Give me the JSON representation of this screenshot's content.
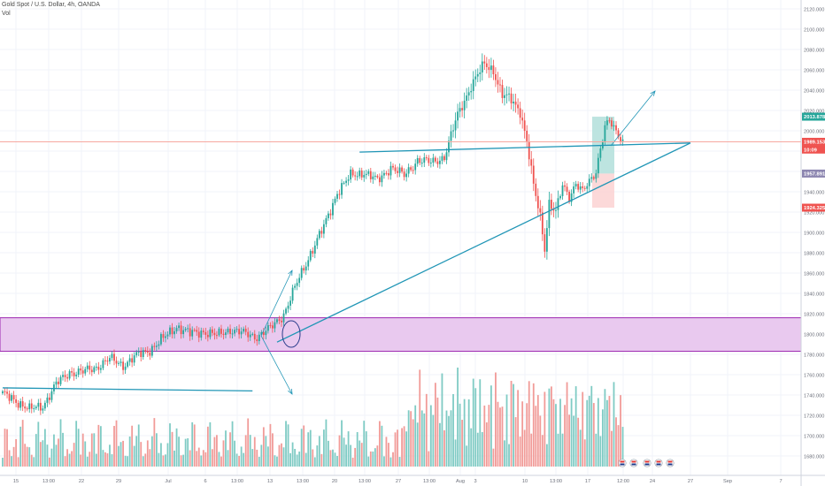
{
  "header": {
    "symbol": "Gold Spot / U.S. Dollar, 4h, OANDA",
    "indicator": "Vol"
  },
  "colors": {
    "up": "#26a69a",
    "down": "#ef5350",
    "vol_up": "#7fcbc4",
    "vol_down": "#f19b98",
    "zone_fill": "#e9c9ef",
    "zone_border": "#9c27b0",
    "trendline": "#2196b6",
    "price_line": "#f7a8a0",
    "long_tp": "#b2dfdb",
    "long_sl": "#fcd2d2",
    "grid": "#f0f3fa"
  },
  "price_axis": {
    "labels": [
      "2120.000",
      "2100.000",
      "2080.000",
      "2060.000",
      "2040.000",
      "2020.000",
      "2000.000",
      "1980.000",
      "1960.000",
      "1940.000",
      "1920.000",
      "1900.000",
      "1880.000",
      "1860.000",
      "1840.000",
      "1820.000",
      "1800.000",
      "1780.000",
      "1760.000",
      "1740.000",
      "1720.000",
      "1700.000",
      "1680.000"
    ],
    "badges": [
      {
        "text": "2013.878",
        "price": 2013.878,
        "color": "#26a69a"
      },
      {
        "text": "1989.153",
        "price": 1989.153,
        "color": "#ef5350"
      },
      {
        "text": "10:09",
        "price": 1981.5,
        "color": "#ef5350"
      },
      {
        "text": "1957.891",
        "price": 1957.891,
        "color": "#8c86b0"
      },
      {
        "text": "1924.325",
        "price": 1924.325,
        "color": "#ef5350"
      }
    ]
  },
  "time_axis": {
    "labels": [
      "15",
      "13:00",
      "22",
      "29",
      "Jul",
      "6",
      "13:00",
      "13",
      "13:00",
      "20",
      "13:00",
      "27",
      "13:00",
      "Aug",
      "3",
      "10",
      "13:00",
      "17",
      "12:00",
      "24",
      "27",
      "Sep",
      "7"
    ]
  },
  "chart_data": {
    "type": "candlestick",
    "symbol": "Gold Spot / U.S. Dollar",
    "timeframe": "4h",
    "ylim": [
      1670,
      2120
    ],
    "price_line": 1989.153,
    "support_zone": [
      1783,
      1816
    ],
    "key_levels": [
      2013.878,
      1989.153,
      1957.891,
      1924.325
    ],
    "anchors": [
      {
        "bar": 0,
        "price": 1740
      },
      {
        "bar": 6,
        "price": 1735
      },
      {
        "bar": 12,
        "price": 1725
      },
      {
        "bar": 18,
        "price": 1730
      },
      {
        "bar": 24,
        "price": 1750
      },
      {
        "bar": 30,
        "price": 1763
      },
      {
        "bar": 36,
        "price": 1762
      },
      {
        "bar": 42,
        "price": 1768
      },
      {
        "bar": 48,
        "price": 1775
      },
      {
        "bar": 54,
        "price": 1770
      },
      {
        "bar": 60,
        "price": 1778
      },
      {
        "bar": 66,
        "price": 1785
      },
      {
        "bar": 72,
        "price": 1795
      },
      {
        "bar": 78,
        "price": 1808
      },
      {
        "bar": 84,
        "price": 1800
      },
      {
        "bar": 90,
        "price": 1803
      },
      {
        "bar": 96,
        "price": 1798
      },
      {
        "bar": 102,
        "price": 1805
      },
      {
        "bar": 108,
        "price": 1800
      },
      {
        "bar": 114,
        "price": 1798
      },
      {
        "bar": 120,
        "price": 1805
      },
      {
        "bar": 126,
        "price": 1820
      },
      {
        "bar": 132,
        "price": 1850
      },
      {
        "bar": 138,
        "price": 1880
      },
      {
        "bar": 144,
        "price": 1905
      },
      {
        "bar": 150,
        "price": 1940
      },
      {
        "bar": 156,
        "price": 1955
      },
      {
        "bar": 162,
        "price": 1960
      },
      {
        "bar": 168,
        "price": 1950
      },
      {
        "bar": 174,
        "price": 1965
      },
      {
        "bar": 180,
        "price": 1955
      },
      {
        "bar": 186,
        "price": 1972
      },
      {
        "bar": 192,
        "price": 1968
      },
      {
        "bar": 198,
        "price": 1975
      },
      {
        "bar": 204,
        "price": 2015
      },
      {
        "bar": 210,
        "price": 2045
      },
      {
        "bar": 216,
        "price": 2065
      },
      {
        "bar": 220,
        "price": 2060
      },
      {
        "bar": 224,
        "price": 2035
      },
      {
        "bar": 228,
        "price": 2030
      },
      {
        "bar": 232,
        "price": 2020
      },
      {
        "bar": 235,
        "price": 1990
      },
      {
        "bar": 238,
        "price": 1945
      },
      {
        "bar": 241,
        "price": 1915
      },
      {
        "bar": 243,
        "price": 1885
      },
      {
        "bar": 245,
        "price": 1930
      },
      {
        "bar": 248,
        "price": 1920
      },
      {
        "bar": 251,
        "price": 1945
      },
      {
        "bar": 254,
        "price": 1935
      },
      {
        "bar": 257,
        "price": 1950
      },
      {
        "bar": 260,
        "price": 1940
      },
      {
        "bar": 263,
        "price": 1948
      },
      {
        "bar": 266,
        "price": 1960
      },
      {
        "bar": 268,
        "price": 1985
      },
      {
        "bar": 270,
        "price": 2005
      },
      {
        "bar": 272,
        "price": 2010
      },
      {
        "bar": 274,
        "price": 2000
      },
      {
        "bar": 276,
        "price": 1995
      },
      {
        "bar": 278,
        "price": 1989
      }
    ],
    "drawings": [
      {
        "kind": "rising-trendline",
        "from": {
          "bar": 123,
          "price": 1792
        },
        "to": {
          "bar": 340,
          "price": 1988
        }
      },
      {
        "kind": "resistance-line",
        "from": {
          "bar": 160,
          "price": 1979
        },
        "to": {
          "bar": 340,
          "price": 1988
        }
      },
      {
        "kind": "old-support-line",
        "from": {
          "bar": 0,
          "price": 1747
        },
        "to": {
          "bar": 112,
          "price": 1744
        }
      }
    ]
  }
}
